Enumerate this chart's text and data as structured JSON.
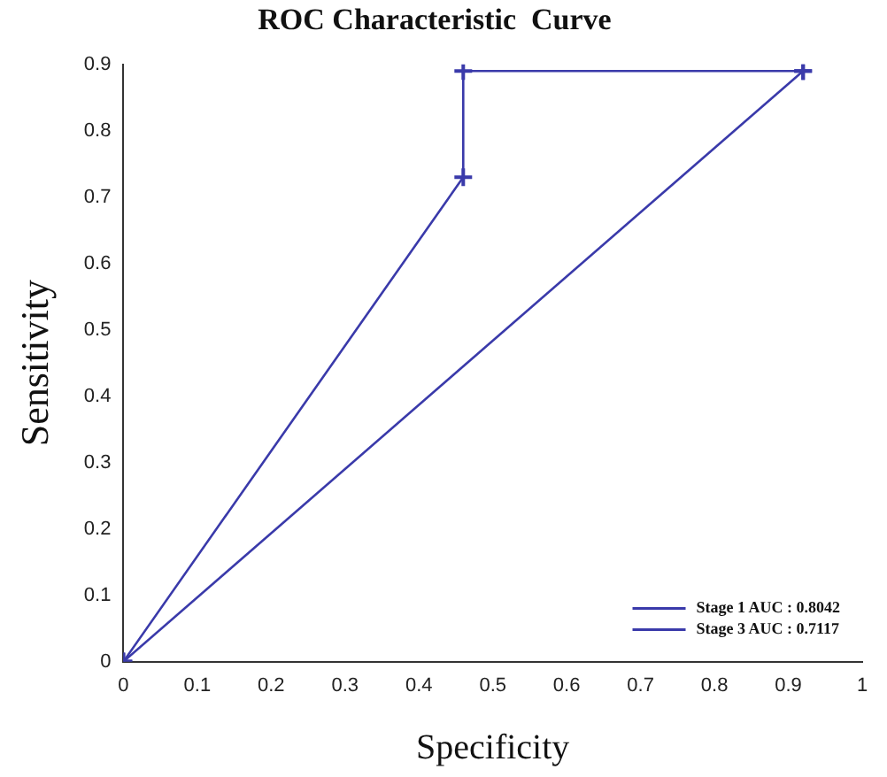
{
  "chart_data": {
    "type": "line",
    "title": "ROC Characteristic  Curve",
    "xlabel": "Specificity",
    "ylabel": "Sensitivity",
    "xlim": [
      0,
      1
    ],
    "xticks": [
      0,
      0.1,
      0.2,
      0.3,
      0.4,
      0.5,
      0.6,
      0.7,
      0.8,
      0.9,
      1
    ],
    "ylim": [
      0,
      0.9
    ],
    "yticks": [
      0,
      0.1,
      0.2,
      0.3,
      0.4,
      0.5,
      0.6,
      0.7,
      0.8,
      0.9
    ],
    "series": [
      {
        "name": "Stage 1 AUC : 0.8042",
        "color": "#3a3aaa",
        "x": [
          0,
          0.46,
          0.46,
          0.92
        ],
        "values": [
          0,
          0.73,
          0.89,
          0.89
        ]
      },
      {
        "name": "Stage 3 AUC : 0.7117",
        "color": "#3a3aaa",
        "x": [
          0,
          0.92
        ],
        "values": [
          0,
          0.89
        ]
      }
    ],
    "grid": false,
    "legend": "bottom right",
    "marker": "cross",
    "line_style": "solid"
  }
}
